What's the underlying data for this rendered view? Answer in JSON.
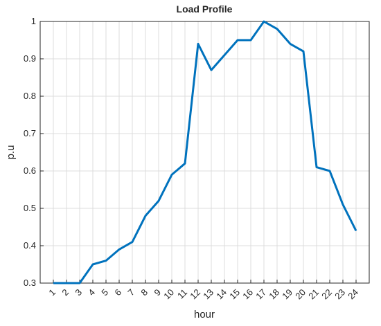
{
  "chart_data": {
    "type": "line",
    "title": "Load Profile",
    "x_label": "hour",
    "y_label": "p.u",
    "x": [
      1,
      2,
      3,
      4,
      5,
      6,
      7,
      8,
      9,
      10,
      11,
      12,
      13,
      14,
      15,
      16,
      17,
      18,
      19,
      20,
      21,
      22,
      23,
      24
    ],
    "series": [
      {
        "color": "#0072bd",
        "values": [
          0.3,
          0.3,
          0.3,
          0.35,
          0.36,
          0.39,
          0.41,
          0.48,
          0.52,
          0.59,
          0.62,
          0.94,
          0.87,
          0.91,
          0.95,
          0.95,
          1.0,
          0.98,
          0.94,
          0.92,
          0.61,
          0.6,
          0.51,
          0.44
        ]
      }
    ],
    "xlim": [
      0,
      25
    ],
    "xticks": [
      1,
      2,
      3,
      4,
      5,
      6,
      7,
      8,
      9,
      10,
      11,
      12,
      13,
      14,
      15,
      16,
      17,
      18,
      19,
      20,
      21,
      22,
      23,
      24
    ],
    "ylim": [
      0.3,
      1
    ],
    "yticks": [
      0.3,
      0.4,
      0.5,
      0.6,
      0.7,
      0.8,
      0.9,
      1
    ],
    "grid": true
  }
}
